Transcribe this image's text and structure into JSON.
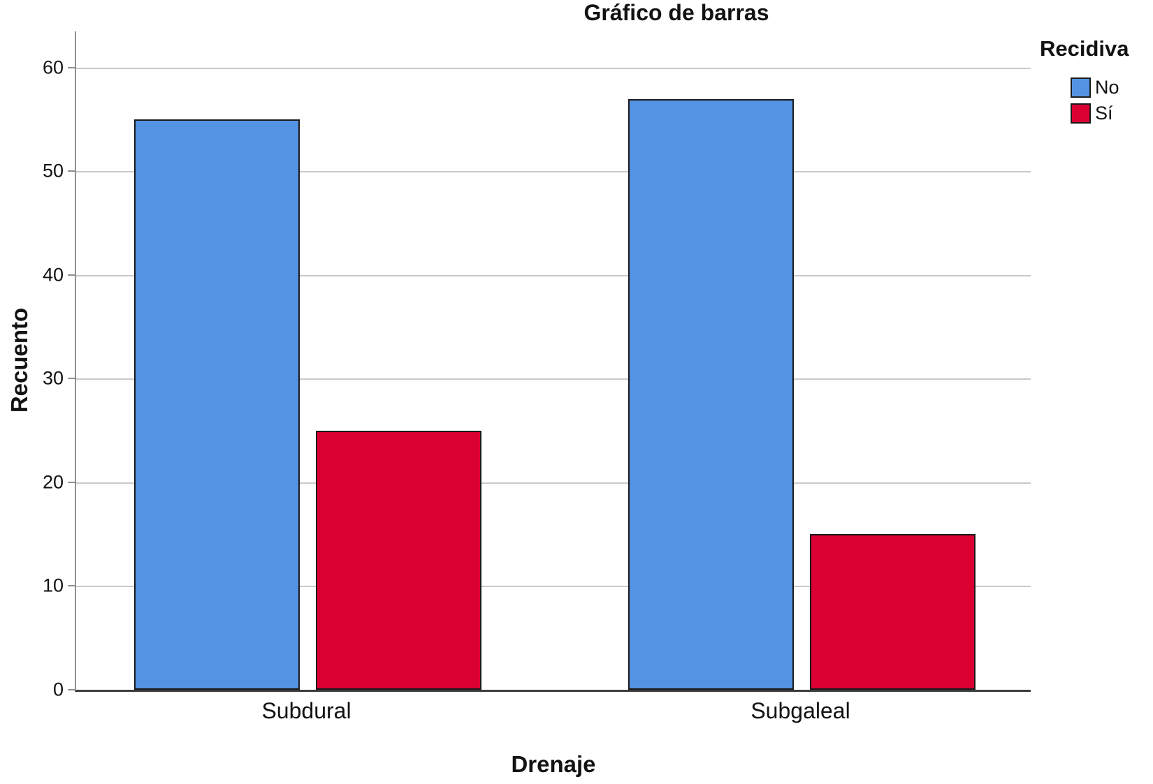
{
  "figure": {
    "title": "Gráfico de barras"
  },
  "chart_data": {
    "type": "bar",
    "title": "Gráfico de barras",
    "xlabel": "Drenaje",
    "ylabel": "Recuento",
    "categories": [
      "Subdural",
      "Subgaleal"
    ],
    "series": [
      {
        "name": "No",
        "color": "#5493E3",
        "values": [
          55,
          57
        ]
      },
      {
        "name": "Sí",
        "color": "#DB0032",
        "values": [
          25,
          15
        ]
      }
    ],
    "legend": {
      "title": "Recidiva",
      "position": "top-right"
    },
    "y_ticks": [
      0,
      10,
      20,
      30,
      40,
      50,
      60
    ],
    "ylim": [
      0,
      63.5
    ],
    "grid": "horizontal",
    "colors": {
      "gridline": "#c9c9c9",
      "y_axis_line": "#8f8f8f",
      "x_axis_line": "#3d3d3d",
      "bar_border": "#1a1a1a",
      "text": "#121212"
    }
  }
}
